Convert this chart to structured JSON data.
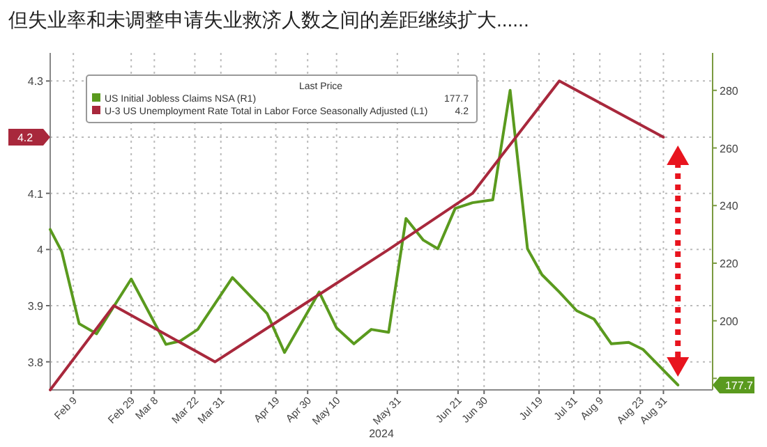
{
  "chart_data": {
    "type": "line",
    "title": "但失业率和未调整申请失业救济人数之间的差距继续扩大......",
    "xlabel": "2024",
    "legend_title": "Last Price",
    "legend": "top left",
    "grid": true,
    "line_style": "solid",
    "marker": "none",
    "xlim": [
      "2024-02-01",
      "2024-09-17"
    ],
    "xticks": [
      {
        "value": "2024-02-09",
        "label": "Feb 9"
      },
      {
        "value": "2024-02-29",
        "label": "Feb 29"
      },
      {
        "value": "2024-03-08",
        "label": "Mar 8"
      },
      {
        "value": "2024-03-22",
        "label": "Mar 22"
      },
      {
        "value": "2024-03-31",
        "label": "Mar 31"
      },
      {
        "value": "2024-04-19",
        "label": "Apr 19"
      },
      {
        "value": "2024-04-30",
        "label": "Apr 30"
      },
      {
        "value": "2024-05-10",
        "label": "May 10"
      },
      {
        "value": "2024-05-31",
        "label": "May 31"
      },
      {
        "value": "2024-06-21",
        "label": "Jun 21"
      },
      {
        "value": "2024-06-30",
        "label": "Jun 30"
      },
      {
        "value": "2024-07-19",
        "label": "Jul 19"
      },
      {
        "value": "2024-07-31",
        "label": "Jul 31"
      },
      {
        "value": "2024-08-09",
        "label": "Aug 9"
      },
      {
        "value": "2024-08-23",
        "label": "Aug 23"
      },
      {
        "value": "2024-08-31",
        "label": "Aug 31"
      }
    ],
    "ylim": [
      3.75,
      4.35
    ],
    "yticks": [
      3.8,
      3.9,
      4.0,
      4.1,
      {
        "value": 4.2,
        "label": null
      },
      4.3
    ],
    "y2lim": [
      176,
      293
    ],
    "y2ticks": [
      {
        "value": 180,
        "label": null
      },
      200,
      220,
      240,
      260,
      280
    ],
    "series": [
      {
        "name": "US Initial Jobless Claims NSA  (R1)",
        "color": "#5a9a1e",
        "axis": "y2",
        "x": [
          "2024-02-01",
          "2024-02-05",
          "2024-02-11",
          "2024-02-17",
          "2024-02-29",
          "2024-03-12",
          "2024-03-17",
          "2024-03-23",
          "2024-04-04",
          "2024-04-16",
          "2024-04-22",
          "2024-05-04",
          "2024-05-10",
          "2024-05-16",
          "2024-05-22",
          "2024-05-28",
          "2024-06-03",
          "2024-06-09",
          "2024-06-14",
          "2024-06-20",
          "2024-06-26",
          "2024-07-03",
          "2024-07-09",
          "2024-07-15",
          "2024-07-20",
          "2024-07-26",
          "2024-08-01",
          "2024-08-07",
          "2024-08-13",
          "2024-08-19",
          "2024-08-24",
          "2024-09-05"
        ],
        "values": [
          231.7,
          224,
          199,
          195.5,
          214.5,
          191.8,
          193,
          197,
          215,
          202.5,
          189,
          210,
          197.5,
          192,
          197,
          196,
          235.5,
          228,
          225,
          239,
          241,
          242,
          280,
          225,
          216,
          210,
          203.5,
          200.6,
          192,
          192.5,
          190,
          177.7
        ]
      },
      {
        "name": "U-3 US Unemployment Rate Total in Labor Force Seasonally Adjusted  (L1)",
        "color": "#a8283c",
        "axis": "y",
        "x": [
          "2024-02-01",
          "2024-02-23",
          "2024-03-29",
          "2024-04-28",
          "2024-05-28",
          "2024-06-26",
          "2024-07-26",
          "2024-08-31"
        ],
        "values": [
          3.75,
          3.9,
          3.8,
          3.9,
          4.0,
          4.1,
          4.3,
          4.2
        ]
      }
    ],
    "annotations": [
      "177.7",
      "4.2",
      "177.7",
      "4.2"
    ]
  }
}
